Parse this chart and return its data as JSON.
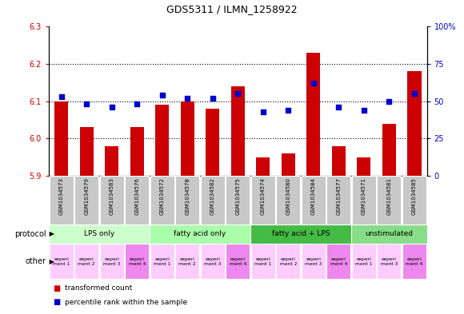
{
  "title": "GDS5311 / ILMN_1258922",
  "samples": [
    "GSM1034573",
    "GSM1034579",
    "GSM1034583",
    "GSM1034576",
    "GSM1034572",
    "GSM1034578",
    "GSM1034582",
    "GSM1034575",
    "GSM1034574",
    "GSM1034580",
    "GSM1034584",
    "GSM1034577",
    "GSM1034571",
    "GSM1034581",
    "GSM1034585"
  ],
  "bar_values": [
    6.1,
    6.03,
    5.98,
    6.03,
    6.09,
    6.1,
    6.08,
    6.14,
    5.95,
    5.96,
    6.23,
    5.98,
    5.95,
    6.04,
    6.18
  ],
  "dot_values": [
    53,
    48,
    46,
    48,
    54,
    52,
    52,
    55,
    43,
    44,
    62,
    46,
    44,
    50,
    55
  ],
  "ylim_left": [
    5.9,
    6.3
  ],
  "ylim_right": [
    0,
    100
  ],
  "yticks_left": [
    5.9,
    6.0,
    6.1,
    6.2,
    6.3
  ],
  "yticks_right": [
    0,
    25,
    50,
    75,
    100
  ],
  "ytick_labels_right": [
    "0",
    "25",
    "50",
    "75",
    "100%"
  ],
  "bar_color": "#cc0000",
  "dot_color": "#0000cc",
  "bar_baseline": 5.9,
  "protocols": [
    {
      "label": "LPS only",
      "color": "#ccffcc",
      "start": 0,
      "end": 4
    },
    {
      "label": "fatty acid only",
      "color": "#aaffaa",
      "start": 4,
      "end": 8
    },
    {
      "label": "fatty acid + LPS",
      "color": "#44bb44",
      "start": 8,
      "end": 12
    },
    {
      "label": "unstimulated",
      "color": "#88dd88",
      "start": 12,
      "end": 15
    }
  ],
  "all_colors": [
    "#ffccff",
    "#ffccff",
    "#ffccff",
    "#ee88ee",
    "#ffccff",
    "#ffccff",
    "#ffccff",
    "#ee88ee",
    "#ffccff",
    "#ffccff",
    "#ffccff",
    "#ee88ee",
    "#ffccff",
    "#ffccff",
    "#ee88ee"
  ],
  "all_other_labels": [
    "experi\nment 1",
    "experi\nment 2",
    "experi\nment 3",
    "experi\nment 4",
    "experi\nment 1",
    "experi\nment 2",
    "experi\nment 3",
    "experi\nment 4",
    "experi\nment 1",
    "experi\nment 2",
    "experi\nment 3",
    "experi\nment 4",
    "experi\nment 1",
    "experi\nment 3",
    "experi\nment 4"
  ],
  "legend_items": [
    {
      "label": "transformed count",
      "color": "#cc0000"
    },
    {
      "label": "percentile rank within the sample",
      "color": "#0000cc"
    }
  ],
  "protocol_row_label": "protocol",
  "other_row_label": "other",
  "gridline_color": "#000000"
}
